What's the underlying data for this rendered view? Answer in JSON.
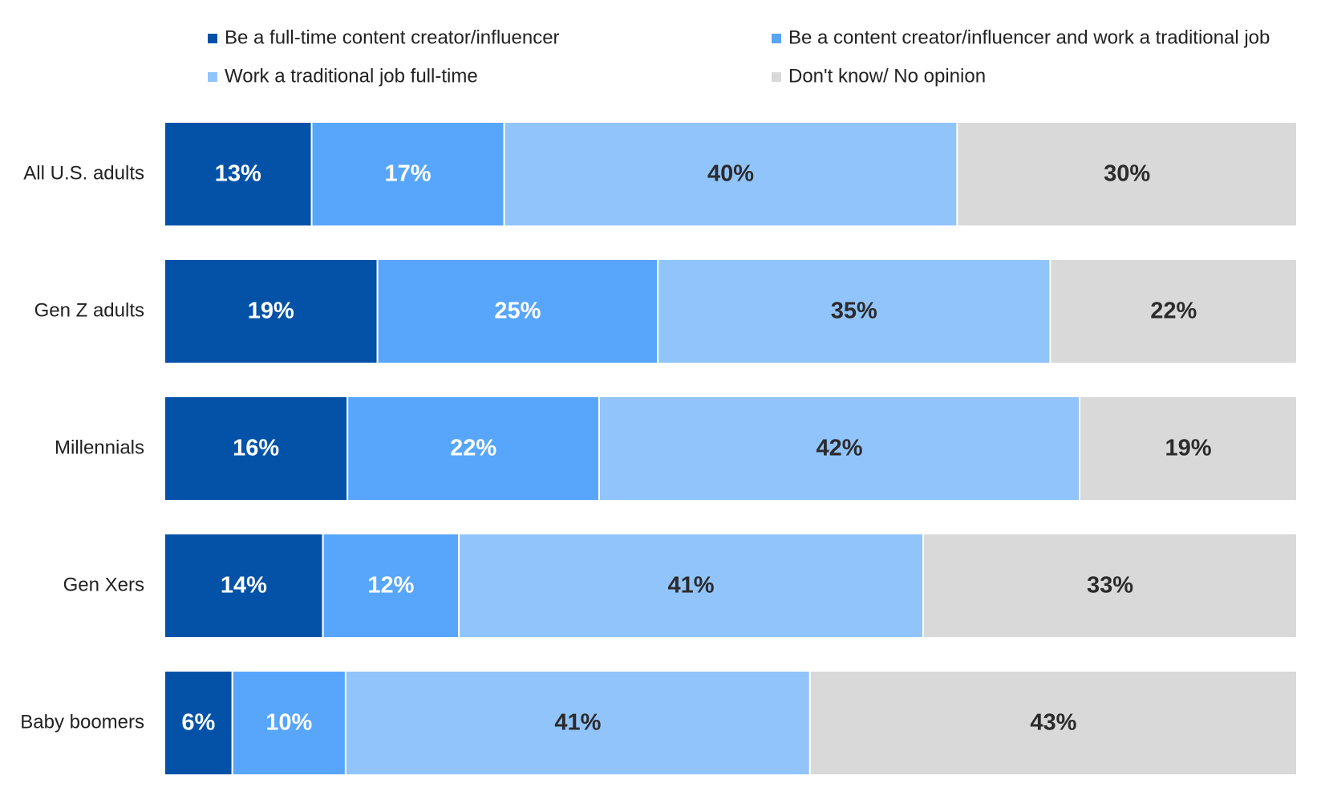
{
  "chart_data": {
    "type": "bar",
    "orientation": "horizontal",
    "stacked": true,
    "categories": [
      "All U.S. adults",
      "Gen Z adults",
      "Millennials",
      "Gen Xers",
      "Baby boomers"
    ],
    "series": [
      {
        "name": "Be a full-time content creator/influencer",
        "values": [
          13,
          19,
          16,
          14,
          6
        ],
        "color": "#0352a8",
        "label_color": "#ffffff"
      },
      {
        "name": "Be a content creator/influencer and work a traditional job",
        "values": [
          17,
          25,
          22,
          12,
          10
        ],
        "color": "#57a6fc",
        "label_color": "#ffffff"
      },
      {
        "name": "Work a traditional job full-time",
        "values": [
          40,
          35,
          42,
          41,
          41
        ],
        "color": "#92c4fc",
        "label_color": "#2b2b2b"
      },
      {
        "name": "Don't know/ No opinion",
        "values": [
          30,
          22,
          19,
          33,
          43
        ],
        "color": "#d9d9d9",
        "label_color": "#2b2b2b"
      }
    ],
    "value_suffix": "%",
    "legend_position": "top",
    "grid": false
  }
}
